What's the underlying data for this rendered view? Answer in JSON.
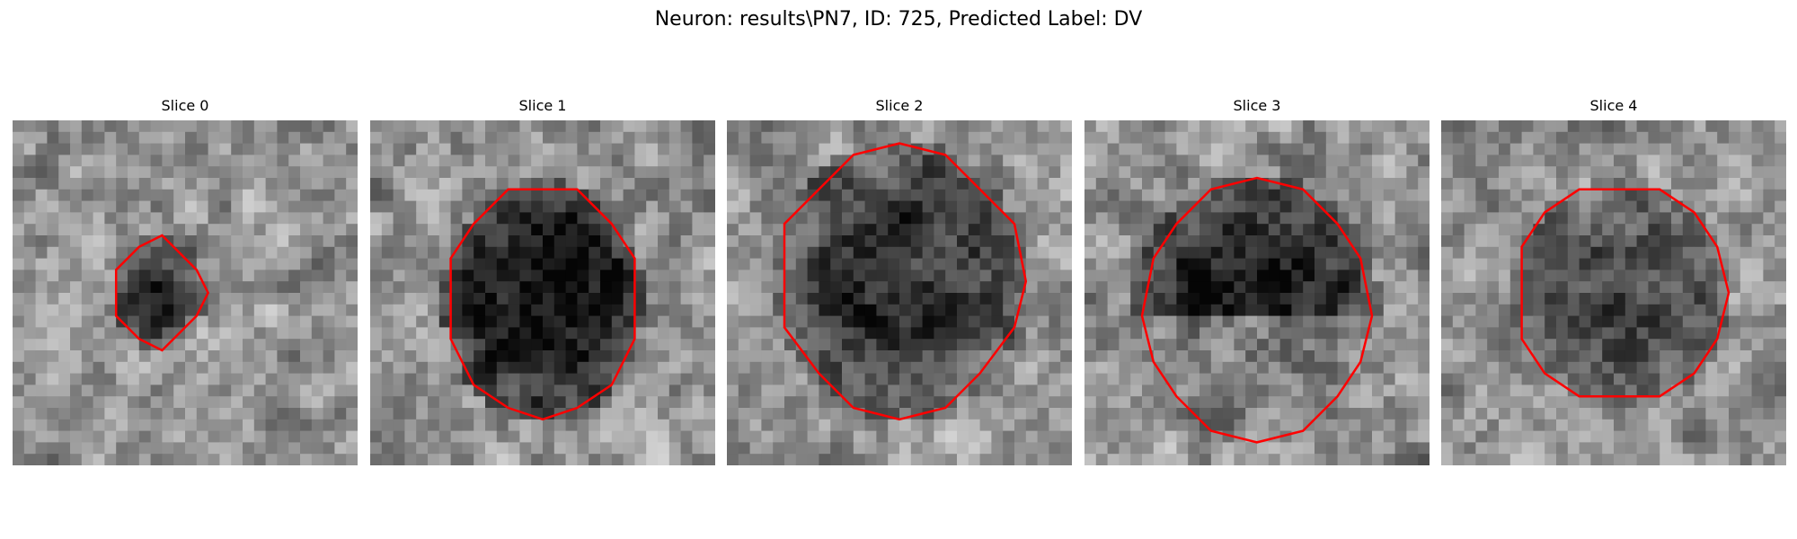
{
  "figure": {
    "title": "Neuron: results\\PN7, ID: 725, Predicted Label: DV"
  },
  "colors": {
    "background": "#ffffff",
    "contour": "#ff0000",
    "colormap": "gray"
  },
  "slices": [
    {
      "title": "Slice 0"
    },
    {
      "title": "Slice 1"
    },
    {
      "title": "Slice 2"
    },
    {
      "title": "Slice 3"
    },
    {
      "title": "Slice 4"
    }
  ]
}
